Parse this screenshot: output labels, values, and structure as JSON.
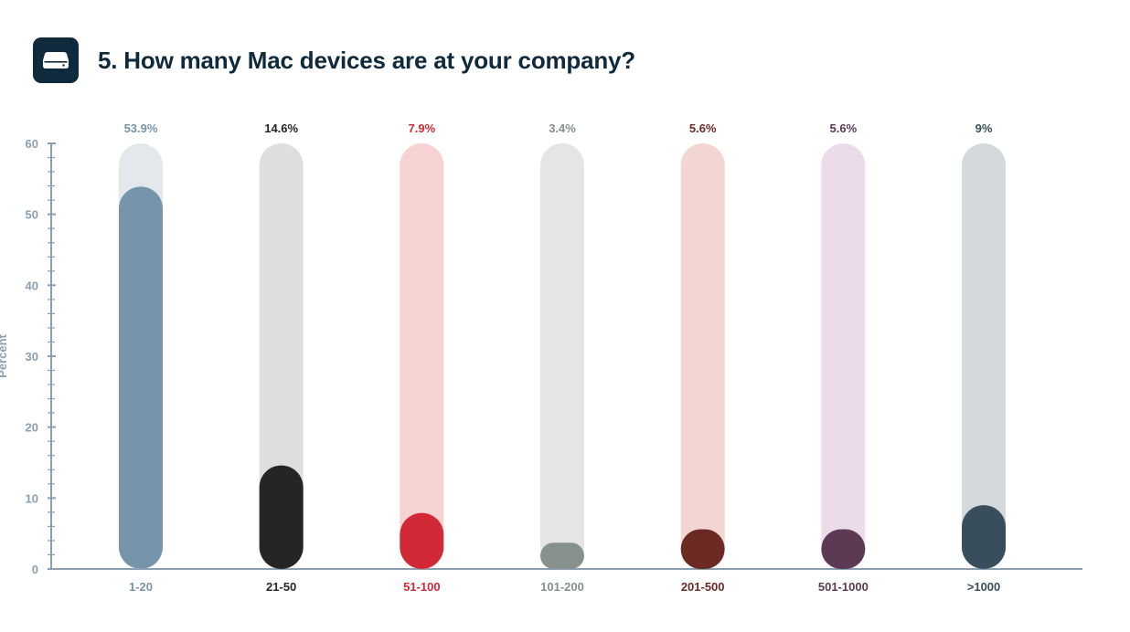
{
  "header": {
    "title": "5. How many Mac devices are at your company?",
    "icon": "mac-mini-icon",
    "icon_bg": "#0f2a3d"
  },
  "chart_data": {
    "type": "bar",
    "title": "5. How many Mac devices are at your company?",
    "xlabel": "",
    "ylabel": "Percent",
    "ylim": [
      0,
      60
    ],
    "yticks": [
      0,
      10,
      20,
      30,
      40,
      50,
      60
    ],
    "categories": [
      "1-20",
      "21-50",
      "51-100",
      "101-200",
      "201-500",
      "501-1000",
      ">1000"
    ],
    "values": [
      53.9,
      14.6,
      7.9,
      3.4,
      5.6,
      5.6,
      9
    ],
    "value_labels": [
      "53.9%",
      "14.6%",
      "7.9%",
      "3.4%",
      "5.6%",
      "5.6%",
      "9%"
    ],
    "bar_colors": [
      "#7795aa",
      "#252525",
      "#d12a36",
      "#87918b",
      "#6b2a23",
      "#5c3a53",
      "#384e5c"
    ],
    "track_colors": [
      "#e3e8ec",
      "#dededd",
      "#f6d2d2",
      "#e5e6e4",
      "#f3d5d1",
      "#ecdcea",
      "#d4d9dc"
    ],
    "label_colors": [
      "#7795aa",
      "#252525",
      "#d12a36",
      "#87918b",
      "#6b2a23",
      "#5c3a53",
      "#384e5c"
    ],
    "axis_color": "#8aa0b0"
  }
}
